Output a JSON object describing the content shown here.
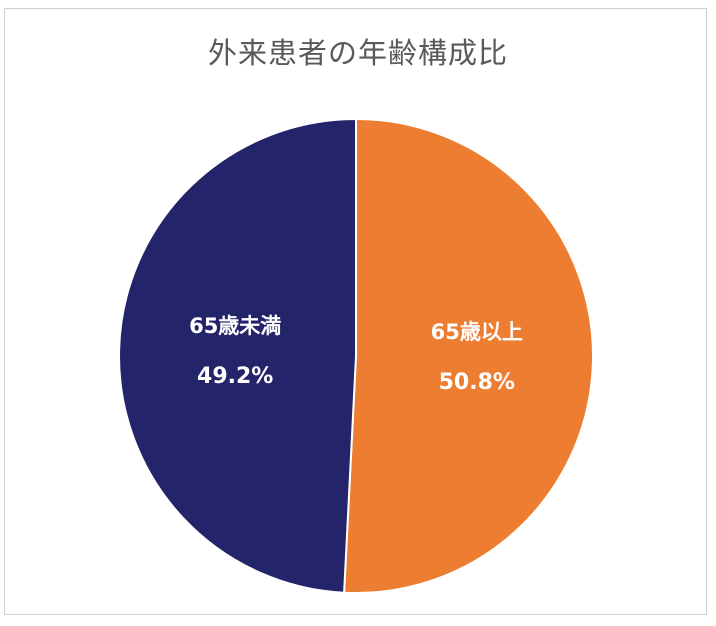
{
  "chart_data": {
    "type": "pie",
    "title": "外来患者の年齢構成比",
    "categories": [
      "65歳以上",
      "65歳未満"
    ],
    "values": [
      50.8,
      49.2
    ],
    "value_labels": [
      "50.8%",
      "49.2%"
    ],
    "colors": [
      "#ED7D31",
      "#24246A"
    ],
    "start_angle_deg": 0,
    "direction": "clockwise",
    "legend": "none",
    "data_labels": "inside"
  }
}
